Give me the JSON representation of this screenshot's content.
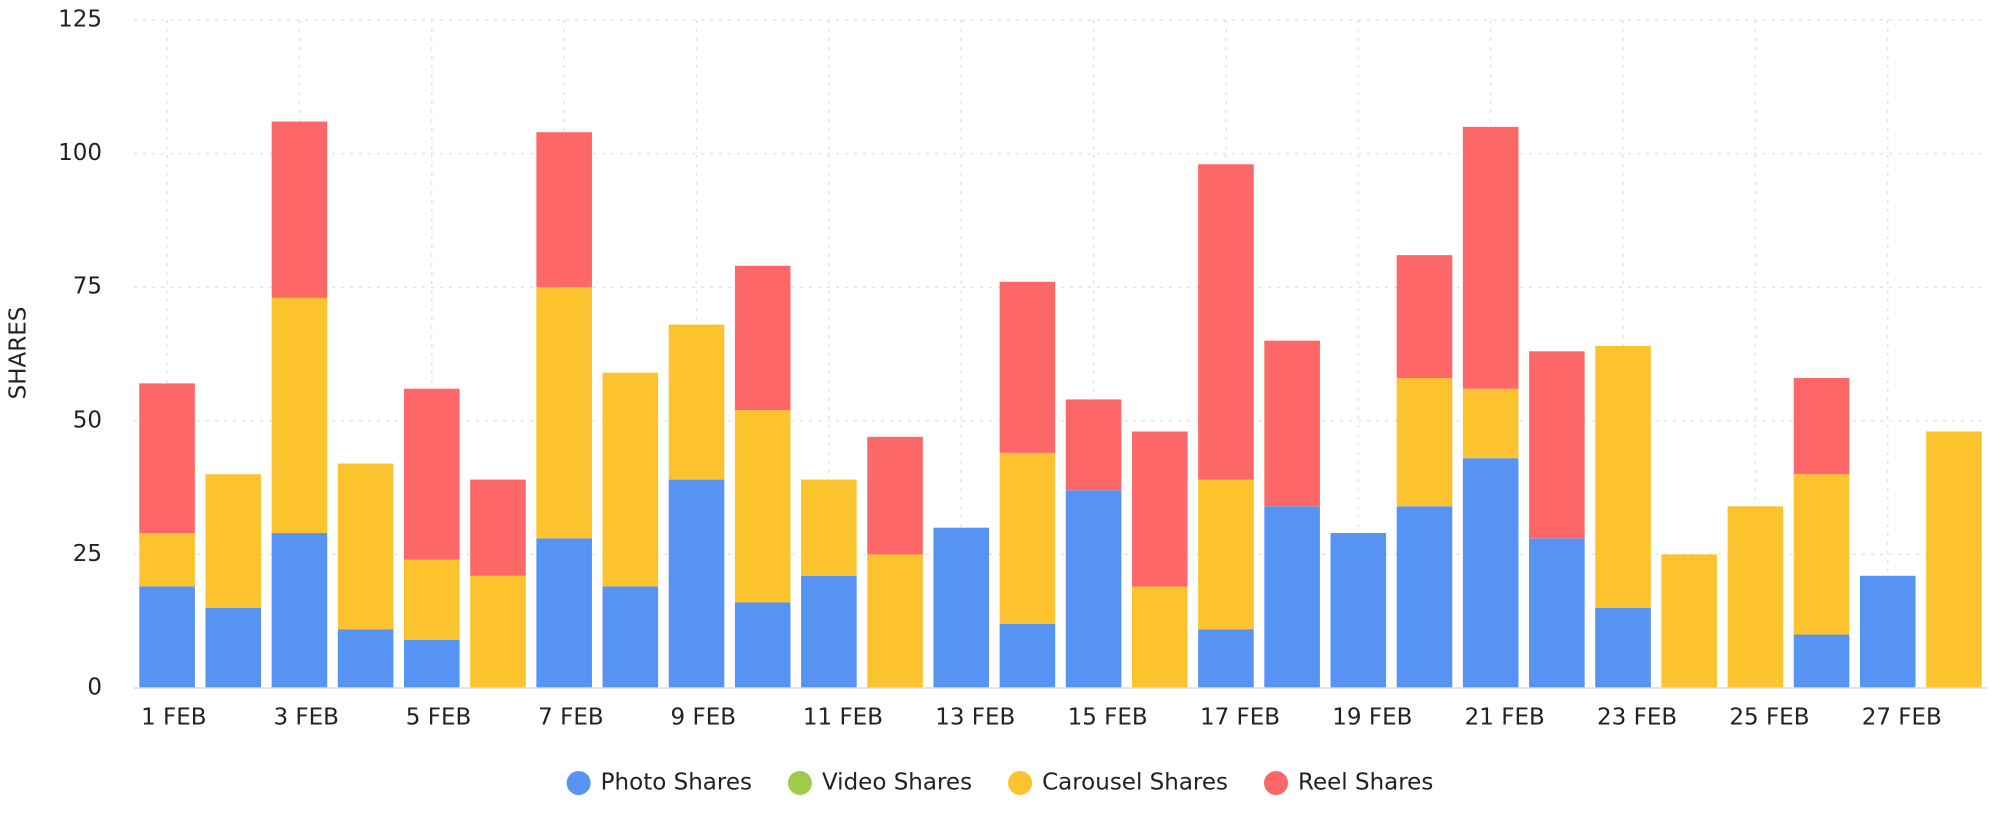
{
  "chart_data": {
    "type": "stacked-bar",
    "y_label": "SHARES",
    "categories": [
      "1 FEB",
      null,
      "3 FEB",
      null,
      "5 FEB",
      null,
      "7 FEB",
      null,
      "9 FEB",
      null,
      "11 FEB",
      null,
      "13 FEB",
      null,
      "15 FEB",
      null,
      "17 FEB",
      null,
      "19 FEB",
      null,
      "21 FEB",
      null,
      "23 FEB",
      null,
      "25 FEB",
      null,
      "27 FEB",
      null
    ],
    "series": [
      {
        "name": "Photo Shares",
        "color": "#5793f3",
        "values": [
          19,
          15,
          29,
          11,
          9,
          0,
          28,
          19,
          39,
          16,
          21,
          0,
          30,
          12,
          37,
          0,
          11,
          34,
          29,
          34,
          43,
          28,
          15,
          0,
          0,
          10,
          21,
          0
        ]
      },
      {
        "name": "Video Shares",
        "color": "#9ccc4a",
        "values": [
          0,
          0,
          0,
          0,
          0,
          0,
          0,
          0,
          0,
          0,
          0,
          0,
          0,
          0,
          0,
          0,
          0,
          0,
          0,
          0,
          0,
          0,
          0,
          0,
          0,
          0,
          0,
          0
        ]
      },
      {
        "name": "Carousel Shares",
        "color": "#fcc32f",
        "values": [
          10,
          25,
          44,
          31,
          15,
          21,
          47,
          40,
          29,
          36,
          18,
          25,
          0,
          32,
          0,
          19,
          28,
          0,
          0,
          24,
          13,
          0,
          49,
          25,
          34,
          30,
          0,
          48
        ]
      },
      {
        "name": "Reel Shares",
        "color": "#fe6767",
        "values": [
          28,
          0,
          33,
          0,
          32,
          18,
          29,
          0,
          0,
          27,
          0,
          22,
          0,
          32,
          17,
          29,
          59,
          31,
          0,
          23,
          49,
          35,
          0,
          0,
          0,
          18,
          0,
          0
        ]
      }
    ],
    "ylim": [
      0,
      125
    ],
    "yticks": [
      0,
      25,
      50,
      75,
      100,
      125
    ],
    "grid": true
  }
}
